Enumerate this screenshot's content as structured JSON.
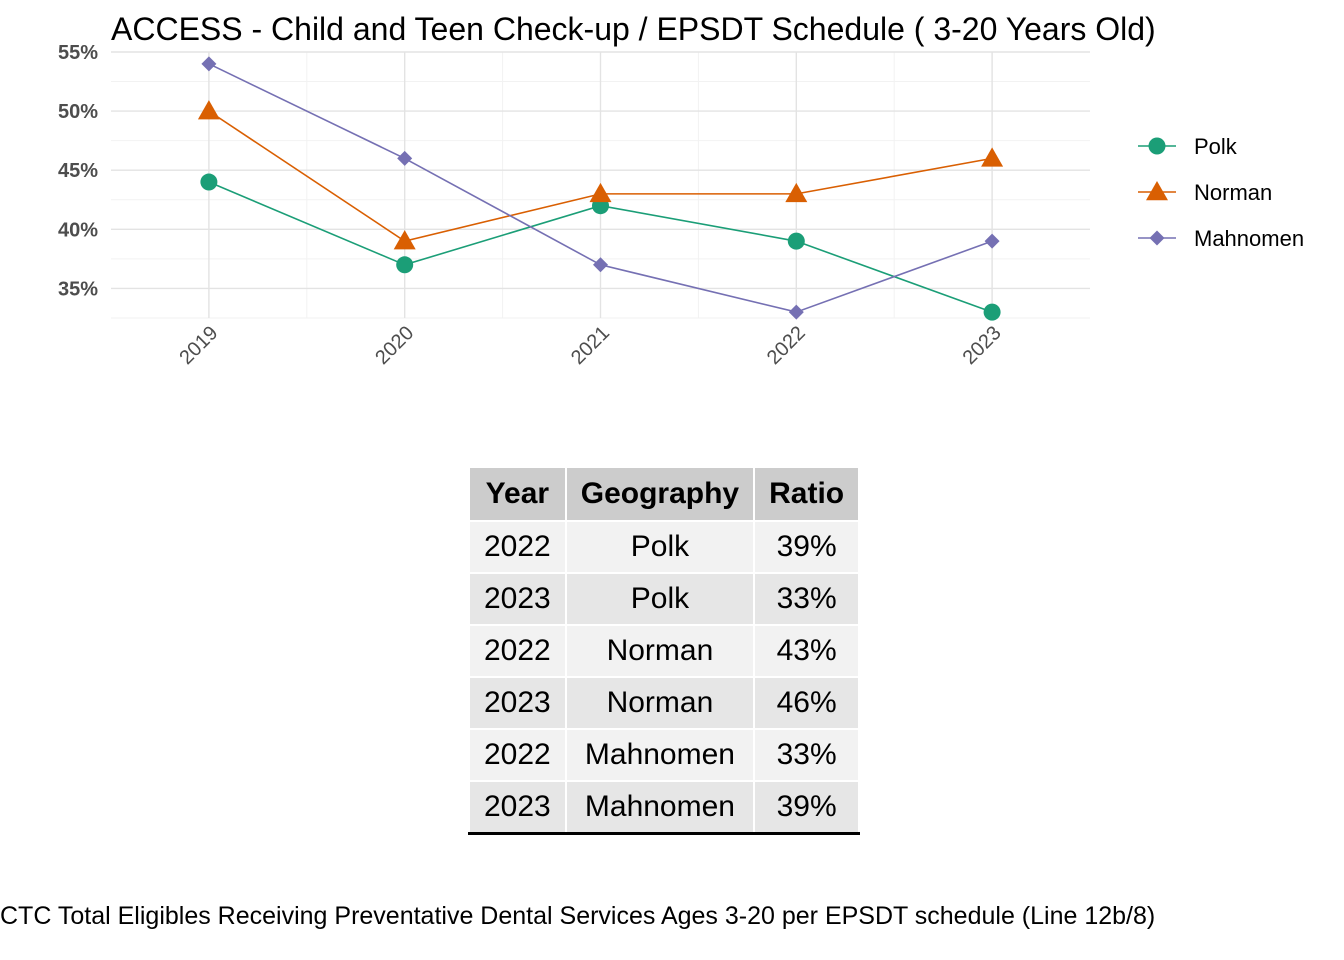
{
  "chart_data": {
    "type": "line",
    "title": "ACCESS - Child and Teen Check-up / EPSDT Schedule ( 3-20  Years Old)",
    "xlabel": "",
    "ylabel": "",
    "x": [
      "2019",
      "2020",
      "2021",
      "2022",
      "2023"
    ],
    "y_ticks": [
      "35%",
      "40%",
      "45%",
      "50%",
      "55%"
    ],
    "y_tick_values": [
      35,
      40,
      45,
      50,
      55
    ],
    "ylim": [
      32.5,
      55
    ],
    "grid": true,
    "legend_position": "right",
    "series": [
      {
        "name": "Polk",
        "values": [
          44,
          37,
          42,
          39,
          33
        ],
        "color": "#1b9e77",
        "marker": "circle"
      },
      {
        "name": "Norman",
        "values": [
          50,
          39,
          43,
          43,
          46
        ],
        "color": "#d95f02",
        "marker": "triangle"
      },
      {
        "name": "Mahnomen",
        "values": [
          54,
          46,
          37,
          33,
          39
        ],
        "color": "#7570b3",
        "marker": "diamond"
      }
    ]
  },
  "table": {
    "headers": [
      "Year",
      "Geography",
      "Ratio"
    ],
    "rows": [
      [
        "2022",
        "Polk",
        "39%"
      ],
      [
        "2023",
        "Polk",
        "33%"
      ],
      [
        "2022",
        "Norman",
        "43%"
      ],
      [
        "2023",
        "Norman",
        "46%"
      ],
      [
        "2022",
        "Mahnomen",
        "33%"
      ],
      [
        "2023",
        "Mahnomen",
        "39%"
      ]
    ]
  },
  "caption": "CTC Total Eligibles Receiving Preventative Dental Services Ages 3-20 per EPSDT schedule (Line 12b/8)"
}
